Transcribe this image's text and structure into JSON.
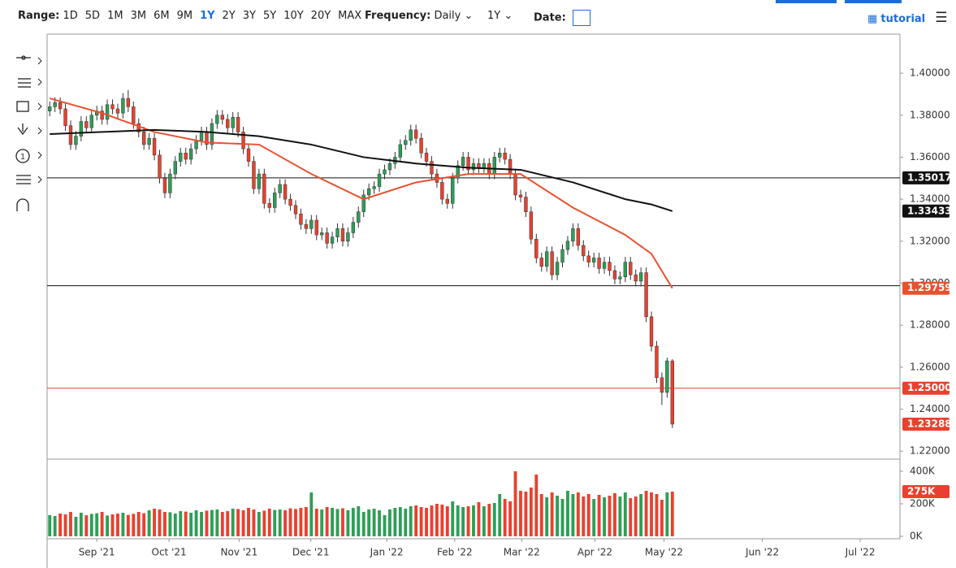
{
  "toolbar": {
    "range_label": "Range:",
    "ranges": [
      "1D",
      "5D",
      "1M",
      "3M",
      "6M",
      "9M",
      "1Y",
      "2Y",
      "3Y",
      "5Y",
      "10Y",
      "20Y",
      "MAX"
    ],
    "active_range": "1Y",
    "frequency_label": "Frequency:",
    "frequency": "Daily",
    "period": "1Y",
    "date_label": "Date:",
    "tutorial": "tutorial"
  },
  "left_tools": {
    "counter": "1"
  },
  "chart_data": {
    "type": "candlestick",
    "up_color": "#2e9e57",
    "down_color": "#e8412f",
    "open": [
      1.382,
      1.384,
      1.386,
      1.383,
      1.375,
      1.366,
      1.37,
      1.377,
      1.374,
      1.38,
      1.382,
      1.378,
      1.385,
      1.383,
      1.381,
      1.388,
      1.384,
      1.376,
      1.372,
      1.366,
      1.369,
      1.361,
      1.35,
      1.343,
      1.352,
      1.358,
      1.362,
      1.359,
      1.364,
      1.368,
      1.372,
      1.366,
      1.376,
      1.38,
      1.378,
      1.374,
      1.379,
      1.372,
      1.364,
      1.358,
      1.345,
      1.352,
      1.338,
      1.336,
      1.343,
      1.347,
      1.34,
      1.337,
      1.333,
      1.328,
      1.326,
      1.33,
      1.323,
      1.324,
      1.319,
      1.322,
      1.326,
      1.32,
      1.324,
      1.329,
      1.334,
      1.342,
      1.345,
      1.346,
      1.352,
      1.354,
      1.357,
      1.36,
      1.366,
      1.368,
      1.373,
      1.369,
      1.362,
      1.358,
      1.352,
      1.348,
      1.34,
      1.338,
      1.35,
      1.356,
      1.36,
      1.354,
      1.357,
      1.355,
      1.357,
      1.352,
      1.36,
      1.362,
      1.359,
      1.352,
      1.342,
      1.341,
      1.334,
      1.321,
      1.312,
      1.308,
      1.315,
      1.304,
      1.31,
      1.316,
      1.32,
      1.326,
      1.318,
      1.313,
      1.31,
      1.312,
      1.307,
      1.31,
      1.306,
      1.302,
      1.303,
      1.31,
      1.304,
      1.301,
      1.305,
      1.284,
      1.27,
      1.255,
      1.248,
      1.263
    ],
    "high": [
      1.3865,
      1.3885,
      1.3885,
      1.3855,
      1.3775,
      1.3725,
      1.3795,
      1.3795,
      1.3825,
      1.3845,
      1.3845,
      1.3875,
      1.3875,
      1.3855,
      1.3905,
      1.392,
      1.3865,
      1.3785,
      1.3745,
      1.3715,
      1.3715,
      1.3635,
      1.3525,
      1.3545,
      1.3605,
      1.3645,
      1.3645,
      1.3665,
      1.3705,
      1.3745,
      1.3745,
      1.3785,
      1.3825,
      1.3825,
      1.3805,
      1.3815,
      1.3815,
      1.3745,
      1.3665,
      1.3605,
      1.3545,
      1.3545,
      1.3405,
      1.3455,
      1.3495,
      1.3495,
      1.3425,
      1.3395,
      1.3355,
      1.3305,
      1.3325,
      1.3325,
      1.3265,
      1.3265,
      1.3245,
      1.3285,
      1.3285,
      1.3265,
      1.3315,
      1.3365,
      1.3445,
      1.3475,
      1.3485,
      1.3545,
      1.3565,
      1.3595,
      1.3625,
      1.3685,
      1.3705,
      1.3755,
      1.3755,
      1.3715,
      1.3645,
      1.3605,
      1.3545,
      1.3505,
      1.3425,
      1.3525,
      1.3585,
      1.3625,
      1.3625,
      1.3595,
      1.3595,
      1.3595,
      1.3595,
      1.3625,
      1.3645,
      1.3645,
      1.3615,
      1.3545,
      1.3445,
      1.3435,
      1.3365,
      1.3235,
      1.3145,
      1.3175,
      1.3175,
      1.3125,
      1.3185,
      1.3225,
      1.3285,
      1.3285,
      1.3205,
      1.3155,
      1.3145,
      1.3145,
      1.3125,
      1.3125,
      1.3085,
      1.3055,
      1.3125,
      1.3125,
      1.3065,
      1.3075,
      1.3075,
      1.2865,
      1.2725,
      1.2575,
      1.2645,
      1.2638
    ],
    "low": [
      1.3795,
      1.3815,
      1.3805,
      1.3725,
      1.3635,
      1.3635,
      1.3675,
      1.3715,
      1.3715,
      1.3775,
      1.3755,
      1.3755,
      1.3805,
      1.3785,
      1.3785,
      1.3815,
      1.3735,
      1.3695,
      1.3635,
      1.3635,
      1.3585,
      1.3475,
      1.3405,
      1.3405,
      1.3495,
      1.3555,
      1.3565,
      1.3565,
      1.3615,
      1.3655,
      1.3635,
      1.3635,
      1.3735,
      1.3755,
      1.3715,
      1.3715,
      1.3695,
      1.3615,
      1.3555,
      1.3425,
      1.3425,
      1.3355,
      1.3335,
      1.3335,
      1.3405,
      1.3375,
      1.3345,
      1.3305,
      1.3255,
      1.3235,
      1.3235,
      1.3205,
      1.3205,
      1.3165,
      1.3165,
      1.3195,
      1.3175,
      1.3175,
      1.3215,
      1.3265,
      1.3315,
      1.3395,
      1.3425,
      1.3435,
      1.3495,
      1.3515,
      1.3545,
      1.3575,
      1.3635,
      1.3655,
      1.3665,
      1.3595,
      1.3555,
      1.3495,
      1.3455,
      1.3375,
      1.3355,
      1.3355,
      1.3475,
      1.3535,
      1.3515,
      1.3515,
      1.3525,
      1.3525,
      1.3495,
      1.3495,
      1.3575,
      1.3565,
      1.3495,
      1.3395,
      1.3385,
      1.3315,
      1.3185,
      1.3095,
      1.3055,
      1.3055,
      1.3015,
      1.3015,
      1.3075,
      1.3135,
      1.3175,
      1.3155,
      1.3105,
      1.3075,
      1.3075,
      1.3045,
      1.3045,
      1.3035,
      1.2995,
      1.2995,
      1.3005,
      1.3015,
      1.2985,
      1.2985,
      1.2815,
      1.2675,
      1.2525,
      1.242,
      1.2455,
      1.231
    ],
    "close": [
      1.384,
      1.386,
      1.383,
      1.375,
      1.366,
      1.37,
      1.377,
      1.374,
      1.38,
      1.382,
      1.378,
      1.385,
      1.383,
      1.381,
      1.388,
      1.384,
      1.376,
      1.372,
      1.366,
      1.369,
      1.361,
      1.35,
      1.343,
      1.352,
      1.358,
      1.362,
      1.359,
      1.364,
      1.368,
      1.372,
      1.366,
      1.376,
      1.38,
      1.378,
      1.374,
      1.379,
      1.372,
      1.364,
      1.358,
      1.345,
      1.352,
      1.338,
      1.336,
      1.343,
      1.347,
      1.34,
      1.337,
      1.333,
      1.328,
      1.326,
      1.33,
      1.323,
      1.324,
      1.319,
      1.322,
      1.326,
      1.32,
      1.324,
      1.329,
      1.334,
      1.342,
      1.345,
      1.346,
      1.352,
      1.354,
      1.357,
      1.36,
      1.366,
      1.368,
      1.373,
      1.369,
      1.362,
      1.358,
      1.352,
      1.348,
      1.34,
      1.338,
      1.35,
      1.356,
      1.36,
      1.354,
      1.357,
      1.355,
      1.357,
      1.352,
      1.36,
      1.362,
      1.359,
      1.352,
      1.342,
      1.341,
      1.334,
      1.321,
      1.312,
      1.308,
      1.315,
      1.304,
      1.31,
      1.316,
      1.32,
      1.326,
      1.318,
      1.313,
      1.31,
      1.312,
      1.307,
      1.31,
      1.306,
      1.302,
      1.303,
      1.31,
      1.304,
      1.301,
      1.305,
      1.284,
      1.27,
      1.255,
      1.248,
      1.263,
      1.23288
    ],
    "lines": [
      {
        "color": "#e8512f",
        "x": [
          0,
          10,
          20,
          30,
          40,
          50,
          60,
          70,
          80,
          90,
          100,
          110,
          115,
          119
        ],
        "values": [
          1.388,
          1.381,
          1.372,
          1.367,
          1.366,
          1.352,
          1.34,
          1.348,
          1.352,
          1.352,
          1.336,
          1.323,
          1.314,
          1.29759
        ]
      },
      {
        "color": "#111111",
        "x": [
          0,
          10,
          20,
          30,
          40,
          50,
          60,
          70,
          80,
          90,
          100,
          110,
          115,
          119
        ],
        "values": [
          1.371,
          1.372,
          1.373,
          1.372,
          1.37,
          1.366,
          1.36,
          1.357,
          1.355,
          1.354,
          1.348,
          1.34,
          1.3375,
          1.33433
        ]
      }
    ],
    "levels": [
      {
        "value": 1.35017,
        "color": "#111111"
      },
      {
        "value": 1.2988,
        "color": "#111111"
      },
      {
        "value": 1.25,
        "label": "1.25000",
        "color": "#e8412f"
      }
    ],
    "xlim": [
      0,
      163
    ],
    "xticks": [
      {
        "value": 9.5,
        "label": "Sep '21"
      },
      {
        "value": 23.3,
        "label": "Oct '21"
      },
      {
        "value": 36.7,
        "label": "Nov '21"
      },
      {
        "value": 50.4,
        "label": "Dec '21"
      },
      {
        "value": 64.9,
        "label": "Jan '22"
      },
      {
        "value": 77.9,
        "label": "Feb '22"
      },
      {
        "value": 90.7,
        "label": "Mar '22"
      },
      {
        "value": 104.7,
        "label": "Apr '22"
      },
      {
        "value": 117.9,
        "label": "May '22"
      },
      {
        "value": 136.7,
        "label": "Jun '22"
      },
      {
        "value": 155.4,
        "label": "Jul '22"
      }
    ],
    "ylim": [
      1.217,
      1.4186
    ],
    "yticks": [
      {
        "value": 1.22,
        "label": "1.22000"
      },
      {
        "value": 1.24,
        "label": "1.24000"
      },
      {
        "value": 1.26,
        "label": "1.26000"
      },
      {
        "value": 1.28,
        "label": "1.28000"
      },
      {
        "value": 1.3,
        "label": "1.30000"
      },
      {
        "value": 1.32,
        "label": "1.32000"
      },
      {
        "value": 1.34,
        "label": "1.34000"
      },
      {
        "value": 1.36,
        "label": "1.36000"
      },
      {
        "value": 1.38,
        "label": "1.38000"
      },
      {
        "value": 1.4,
        "label": "1.40000"
      }
    ],
    "volume": {
      "values": [
        130000,
        125000,
        140000,
        135000,
        150000,
        120000,
        145000,
        130000,
        138000,
        142000,
        150000,
        128000,
        135000,
        140000,
        145000,
        132000,
        138000,
        150000,
        142000,
        160000,
        170000,
        165000,
        150000,
        148000,
        140000,
        155000,
        152000,
        145000,
        160000,
        150000,
        158000,
        162000,
        165000,
        150000,
        155000,
        170000,
        168000,
        160000,
        175000,
        165000,
        150000,
        158000,
        170000,
        162000,
        165000,
        160000,
        172000,
        168000,
        175000,
        180000,
        270000,
        170000,
        165000,
        180000,
        175000,
        168000,
        172000,
        160000,
        175000,
        185000,
        150000,
        165000,
        170000,
        160000,
        130000,
        165000,
        175000,
        180000,
        170000,
        185000,
        190000,
        180000,
        175000,
        190000,
        200000,
        195000,
        185000,
        215000,
        190000,
        180000,
        185000,
        190000,
        210000,
        185000,
        200000,
        205000,
        260000,
        230000,
        215000,
        400000,
        280000,
        275000,
        300000,
        380000,
        260000,
        240000,
        270000,
        250000,
        230000,
        280000,
        260000,
        270000,
        245000,
        260000,
        230000,
        255000,
        240000,
        250000,
        265000,
        245000,
        270000,
        235000,
        245000,
        260000,
        280000,
        270000,
        260000,
        225000,
        270000,
        275000
      ],
      "last_label": "275K",
      "ylim": [
        0,
        470000
      ],
      "yticks": [
        {
          "value": 0,
          "label": "0K"
        },
        {
          "value": 200000,
          "label": "200K"
        },
        {
          "value": 400000,
          "label": "400K"
        }
      ]
    }
  }
}
